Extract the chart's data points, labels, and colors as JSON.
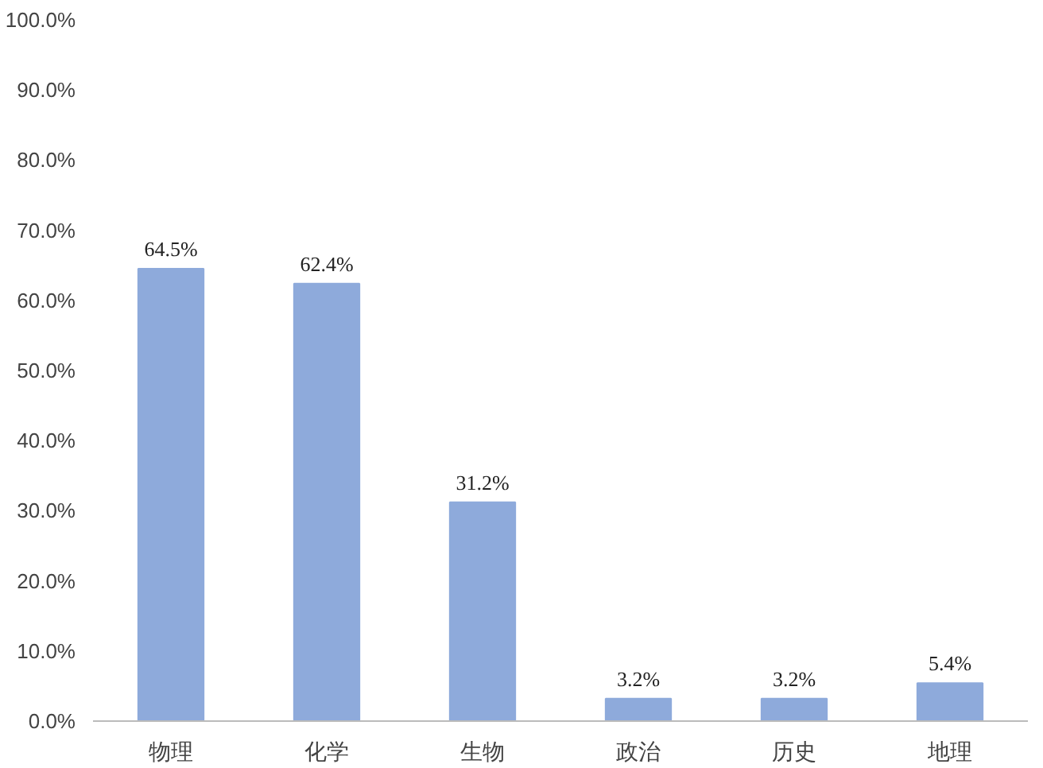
{
  "chart_data": {
    "type": "bar",
    "categories": [
      "物理",
      "化学",
      "生物",
      "政治",
      "历史",
      "地理"
    ],
    "values": [
      64.5,
      62.4,
      31.2,
      3.2,
      3.2,
      5.4
    ],
    "value_labels": [
      "64.5%",
      "62.4%",
      "31.2%",
      "3.2%",
      "3.2%",
      "5.4%"
    ],
    "color": "#8eaadb",
    "ylim": [
      0,
      100
    ],
    "yticks": [
      {
        "value": 0,
        "label": "0.0%"
      },
      {
        "value": 10,
        "label": "10.0%"
      },
      {
        "value": 20,
        "label": "20.0%"
      },
      {
        "value": 30,
        "label": "30.0%"
      },
      {
        "value": 40,
        "label": "40.0%"
      },
      {
        "value": 50,
        "label": "50.0%"
      },
      {
        "value": 60,
        "label": "60.0%"
      },
      {
        "value": 70,
        "label": "70.0%"
      },
      {
        "value": 80,
        "label": "80.0%"
      },
      {
        "value": 90,
        "label": "90.0%"
      },
      {
        "value": 100,
        "label": "100.0%"
      }
    ],
    "grid": false
  }
}
